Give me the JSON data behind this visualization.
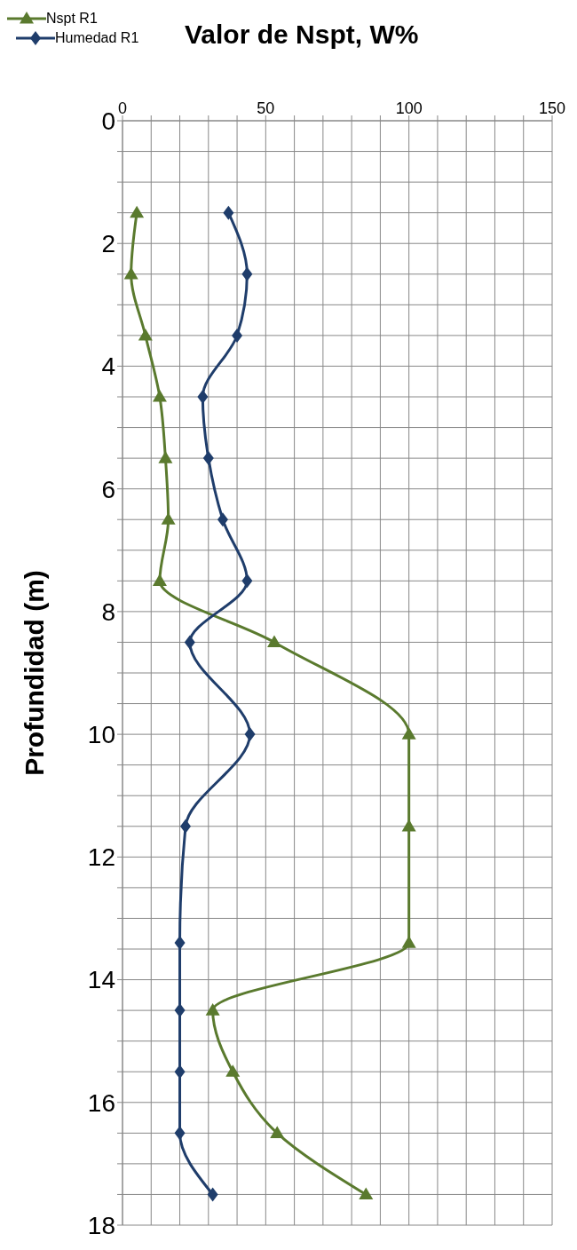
{
  "chart_data": {
    "type": "line",
    "title": "Valor de Nspt, W%",
    "ylabel": "Profundidad (m)",
    "xlim": [
      0,
      150
    ],
    "xticks": [
      0,
      {
        "value": 10,
        "label": null
      },
      {
        "value": 20,
        "label": null
      },
      {
        "value": 30,
        "label": null
      },
      {
        "value": 40,
        "label": null
      },
      50,
      {
        "value": 60,
        "label": null
      },
      {
        "value": 70,
        "label": null
      },
      {
        "value": 80,
        "label": null
      },
      {
        "value": 90,
        "label": null
      },
      100,
      {
        "value": 110,
        "label": null
      },
      {
        "value": 120,
        "label": null
      },
      {
        "value": 130,
        "label": null
      },
      {
        "value": 140,
        "label": null
      },
      150
    ],
    "ylim": [
      18,
      0
    ],
    "yticks": [
      0,
      {
        "value": 0.5,
        "label": null
      },
      {
        "value": 1,
        "label": null
      },
      {
        "value": 1.5,
        "label": null
      },
      2,
      {
        "value": 2.5,
        "label": null
      },
      {
        "value": 3,
        "label": null
      },
      {
        "value": 3.5,
        "label": null
      },
      4,
      {
        "value": 4.5,
        "label": null
      },
      {
        "value": 5,
        "label": null
      },
      {
        "value": 5.5,
        "label": null
      },
      6,
      {
        "value": 6.5,
        "label": null
      },
      {
        "value": 7,
        "label": null
      },
      {
        "value": 7.5,
        "label": null
      },
      8,
      {
        "value": 8.5,
        "label": null
      },
      {
        "value": 9,
        "label": null
      },
      {
        "value": 9.5,
        "label": null
      },
      10,
      {
        "value": 10.5,
        "label": null
      },
      {
        "value": 11,
        "label": null
      },
      {
        "value": 11.5,
        "label": null
      },
      12,
      {
        "value": 12.5,
        "label": null
      },
      {
        "value": 13,
        "label": null
      },
      {
        "value": 13.5,
        "label": null
      },
      14,
      {
        "value": 14.5,
        "label": null
      },
      {
        "value": 15,
        "label": null
      },
      {
        "value": 15.5,
        "label": null
      },
      16,
      {
        "value": 16.5,
        "label": null
      },
      {
        "value": 17,
        "label": null
      },
      {
        "value": 17.5,
        "label": null
      },
      18
    ],
    "grid": true,
    "legend": "top left",
    "series": [
      {
        "name": "Nspt R1",
        "color": "#5a7a2e",
        "marker": "triangle",
        "x": [
          5,
          3,
          8,
          13,
          15,
          16,
          13,
          53,
          100,
          100,
          100,
          31.5,
          38.5,
          54,
          85
        ],
        "values": [
          1.5,
          2.5,
          3.5,
          4.5,
          5.5,
          6.5,
          7.5,
          8.5,
          10,
          11.5,
          13.4,
          14.5,
          15.5,
          16.5,
          17.5
        ]
      },
      {
        "name": "Humedad R1",
        "color": "#1f3d6b",
        "marker": "diamond",
        "x": [
          37,
          43.5,
          40,
          28,
          30,
          35,
          43.5,
          23.5,
          44.5,
          22,
          20,
          20,
          20,
          20,
          31.5
        ],
        "values": [
          1.5,
          2.5,
          3.5,
          4.5,
          5.5,
          6.5,
          7.5,
          8.5,
          10,
          11.5,
          13.4,
          14.5,
          15.5,
          16.5,
          17.5
        ]
      }
    ]
  }
}
